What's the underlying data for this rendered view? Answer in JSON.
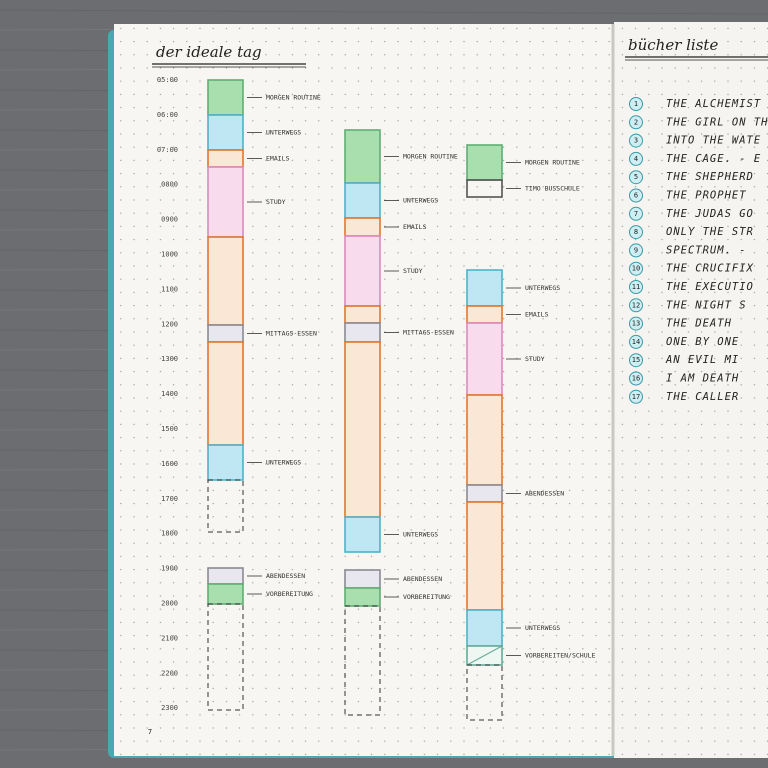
{
  "left_page": {
    "title": "der ideale tag",
    "page_number": "7",
    "times": [
      "05:00",
      "06:00",
      "07:00",
      "0800",
      "0900",
      "1000",
      "1100",
      "1200",
      "1300",
      "1400",
      "1500",
      "1600",
      "1700",
      "1800",
      "1900",
      "2000",
      "2100",
      "2200",
      "2300"
    ],
    "columns": [
      {
        "labels": [
          "Morgen Routine",
          "Unterwegs",
          "Emails",
          "Study",
          "Mittags-essen",
          "Unterwegs",
          "Abendessen",
          "Vorbereitung"
        ]
      },
      {
        "labels": [
          "Morgen Routine",
          "Unterwegs",
          "Emails",
          "Study",
          "Mittags-essen",
          "Unterwegs",
          "Abendessen",
          "Vorbereitung"
        ]
      },
      {
        "labels": [
          "Morgen Routine",
          "Timo Busschule",
          "Unterwegs",
          "Emails",
          "Study",
          "Abendessen",
          "Unterwegs",
          "Vorbereiten/Schule"
        ]
      }
    ]
  },
  "right_page": {
    "title": "bücher liste",
    "items": [
      {
        "number": "1",
        "text": "THE ALCHEMIST"
      },
      {
        "number": "2",
        "text": "THE GIRL ON THE"
      },
      {
        "number": "3",
        "text": "INTO THE WATE"
      },
      {
        "number": "4",
        "text": "THE CAGE. - E"
      },
      {
        "number": "5",
        "text": "THE SHEPHERD"
      },
      {
        "number": "6",
        "text": "THE PROPHET"
      },
      {
        "number": "7",
        "text": "THE JUDAS GO"
      },
      {
        "number": "8",
        "text": "ONLY THE STR"
      },
      {
        "number": "9",
        "text": "SPECTRUM. -"
      },
      {
        "number": "10",
        "text": "THE CRUCIFIX"
      },
      {
        "number": "11",
        "text": "THE EXECUTIO"
      },
      {
        "number": "12",
        "text": "THE NIGHT S"
      },
      {
        "number": "13",
        "text": "THE DEATH"
      },
      {
        "number": "14",
        "text": "ONE BY ONE"
      },
      {
        "number": "15",
        "text": "AN EVIL MI"
      },
      {
        "number": "16",
        "text": "I AM DEATH"
      },
      {
        "number": "17",
        "text": "THE CALLER"
      }
    ]
  }
}
